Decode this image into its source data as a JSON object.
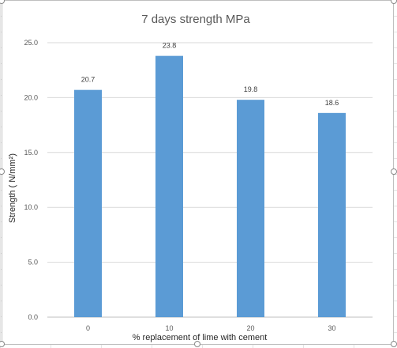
{
  "chart_data": {
    "type": "bar",
    "title": "7 days strength MPa",
    "xlabel": "% replacement of lime with cement",
    "ylabel": "Strength    ( N/mm²)",
    "categories": [
      "0",
      "10",
      "20",
      "30"
    ],
    "values": [
      20.7,
      23.8,
      19.8,
      18.6
    ],
    "data_labels": [
      "20.7",
      "23.8",
      "19.8",
      "18.6"
    ],
    "yticks": [
      "0.0",
      "5.0",
      "10.0",
      "15.0",
      "20.0",
      "25.0"
    ],
    "ylim": [
      0,
      25
    ],
    "grid": true,
    "legend": "none",
    "bar_color": "#5b9bd5"
  }
}
